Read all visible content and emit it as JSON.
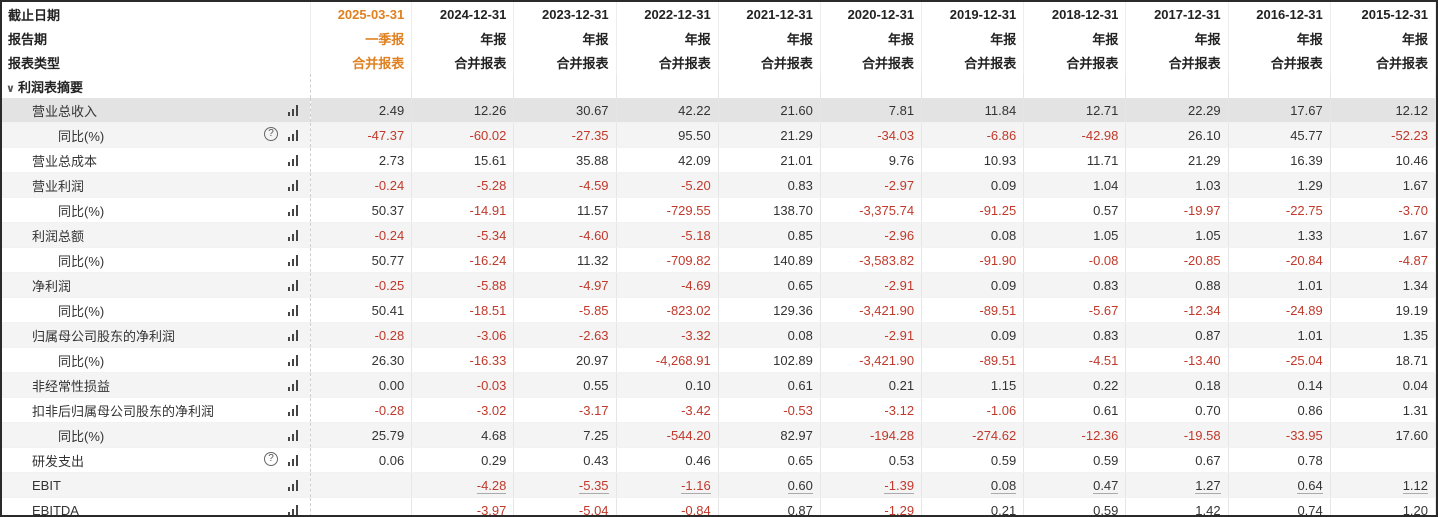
{
  "header": {
    "rows": [
      {
        "label": "截止日期",
        "cells": [
          "2025-03-31",
          "2024-12-31",
          "2023-12-31",
          "2022-12-31",
          "2021-12-31",
          "2020-12-31",
          "2019-12-31",
          "2018-12-31",
          "2017-12-31",
          "2016-12-31",
          "2015-12-31"
        ]
      },
      {
        "label": "报告期",
        "cells": [
          "一季报",
          "年报",
          "年报",
          "年报",
          "年报",
          "年报",
          "年报",
          "年报",
          "年报",
          "年报",
          "年报"
        ]
      },
      {
        "label": "报表类型",
        "cells": [
          "合并报表",
          "合并报表",
          "合并报表",
          "合并报表",
          "合并报表",
          "合并报表",
          "合并报表",
          "合并报表",
          "合并报表",
          "合并报表",
          "合并报表"
        ]
      }
    ],
    "current_color": "#e08020"
  },
  "section": {
    "label": "利润表摘要"
  },
  "rows": [
    {
      "label": "营业总收入",
      "level": "main",
      "help": false,
      "values": [
        "2.49",
        "12.26",
        "30.67",
        "42.22",
        "21.60",
        "7.81",
        "11.84",
        "12.71",
        "22.29",
        "17.67",
        "12.12"
      ]
    },
    {
      "label": "同比(%)",
      "level": "sub",
      "help": true,
      "values": [
        "-47.37",
        "-60.02",
        "-27.35",
        "95.50",
        "21.29",
        "-34.03",
        "-6.86",
        "-42.98",
        "26.10",
        "45.77",
        "-52.23"
      ]
    },
    {
      "label": "营业总成本",
      "level": "main",
      "help": false,
      "values": [
        "2.73",
        "15.61",
        "35.88",
        "42.09",
        "21.01",
        "9.76",
        "10.93",
        "11.71",
        "21.29",
        "16.39",
        "10.46"
      ]
    },
    {
      "label": "营业利润",
      "level": "main",
      "help": false,
      "values": [
        "-0.24",
        "-5.28",
        "-4.59",
        "-5.20",
        "0.83",
        "-2.97",
        "0.09",
        "1.04",
        "1.03",
        "1.29",
        "1.67"
      ]
    },
    {
      "label": "同比(%)",
      "level": "sub",
      "help": false,
      "values": [
        "50.37",
        "-14.91",
        "11.57",
        "-729.55",
        "138.70",
        "-3,375.74",
        "-91.25",
        "0.57",
        "-19.97",
        "-22.75",
        "-3.70"
      ]
    },
    {
      "label": "利润总额",
      "level": "main",
      "help": false,
      "values": [
        "-0.24",
        "-5.34",
        "-4.60",
        "-5.18",
        "0.85",
        "-2.96",
        "0.08",
        "1.05",
        "1.05",
        "1.33",
        "1.67"
      ]
    },
    {
      "label": "同比(%)",
      "level": "sub",
      "help": false,
      "values": [
        "50.77",
        "-16.24",
        "11.32",
        "-709.82",
        "140.89",
        "-3,583.82",
        "-91.90",
        "-0.08",
        "-20.85",
        "-20.84",
        "-4.87"
      ]
    },
    {
      "label": "净利润",
      "level": "main",
      "help": false,
      "values": [
        "-0.25",
        "-5.88",
        "-4.97",
        "-4.69",
        "0.65",
        "-2.91",
        "0.09",
        "0.83",
        "0.88",
        "1.01",
        "1.34"
      ]
    },
    {
      "label": "同比(%)",
      "level": "sub",
      "help": false,
      "values": [
        "50.41",
        "-18.51",
        "-5.85",
        "-823.02",
        "129.36",
        "-3,421.90",
        "-89.51",
        "-5.67",
        "-12.34",
        "-24.89",
        "19.19"
      ]
    },
    {
      "label": "归属母公司股东的净利润",
      "level": "main",
      "help": false,
      "values": [
        "-0.28",
        "-3.06",
        "-2.63",
        "-3.32",
        "0.08",
        "-2.91",
        "0.09",
        "0.83",
        "0.87",
        "1.01",
        "1.35"
      ]
    },
    {
      "label": "同比(%)",
      "level": "sub",
      "help": false,
      "values": [
        "26.30",
        "-16.33",
        "20.97",
        "-4,268.91",
        "102.89",
        "-3,421.90",
        "-89.51",
        "-4.51",
        "-13.40",
        "-25.04",
        "18.71"
      ]
    },
    {
      "label": "非经常性损益",
      "level": "main",
      "help": false,
      "values": [
        "0.00",
        "-0.03",
        "0.55",
        "0.10",
        "0.61",
        "0.21",
        "1.15",
        "0.22",
        "0.18",
        "0.14",
        "0.04"
      ]
    },
    {
      "label": "扣非后归属母公司股东的净利润",
      "level": "main",
      "help": false,
      "values": [
        "-0.28",
        "-3.02",
        "-3.17",
        "-3.42",
        "-0.53",
        "-3.12",
        "-1.06",
        "0.61",
        "0.70",
        "0.86",
        "1.31"
      ]
    },
    {
      "label": "同比(%)",
      "level": "sub",
      "help": false,
      "values": [
        "25.79",
        "4.68",
        "7.25",
        "-544.20",
        "82.97",
        "-194.28",
        "-274.62",
        "-12.36",
        "-19.58",
        "-33.95",
        "17.60"
      ]
    },
    {
      "label": "研发支出",
      "level": "main",
      "help": true,
      "values": [
        "0.06",
        "0.29",
        "0.43",
        "0.46",
        "0.65",
        "0.53",
        "0.59",
        "0.59",
        "0.67",
        "0.78",
        ""
      ]
    },
    {
      "label": "EBIT",
      "level": "main",
      "help": false,
      "values": [
        "",
        "-4.28",
        "-5.35",
        "-1.16",
        "0.60",
        "-1.39",
        "0.08",
        "0.47",
        "1.27",
        "0.64",
        "1.12"
      ]
    },
    {
      "label": "EBITDA",
      "level": "main",
      "help": false,
      "values": [
        "",
        "-3.97",
        "-5.04",
        "-0.84",
        "0.87",
        "-1.29",
        "0.21",
        "0.59",
        "1.42",
        "0.74",
        "1.20"
      ]
    }
  ],
  "colors": {
    "negative": "#c0392b",
    "positive": "#333333",
    "highlight_row": "#e3e3e3",
    "alt_row": "#f4f4f4"
  }
}
